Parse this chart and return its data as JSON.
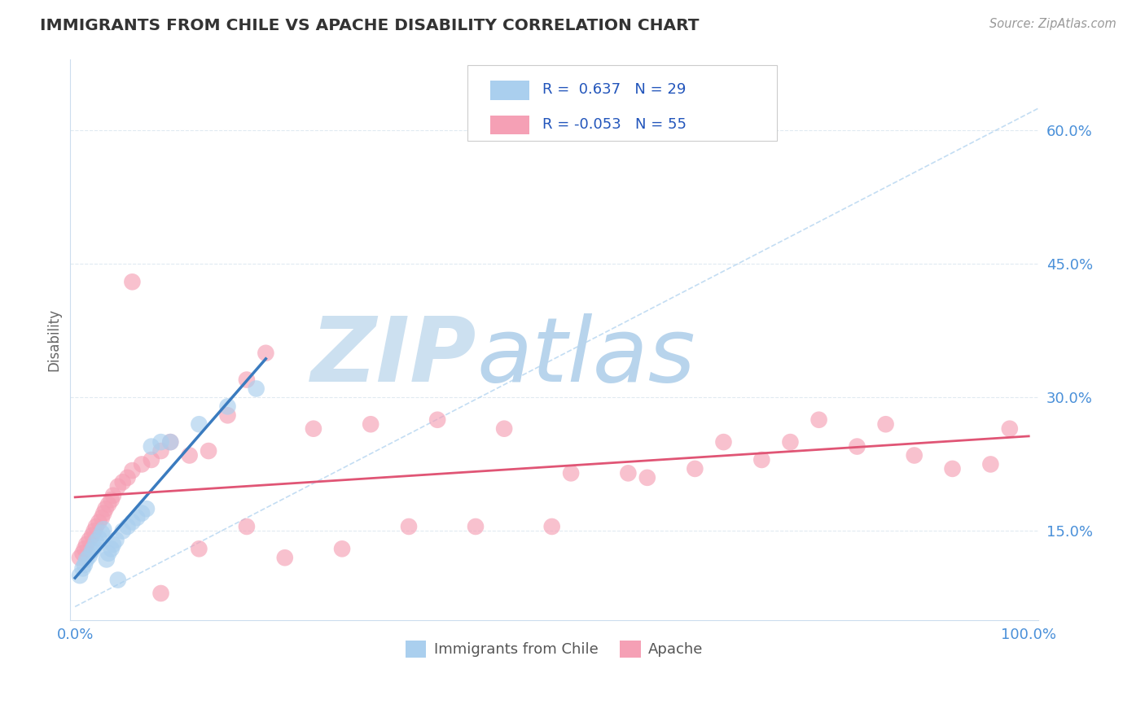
{
  "title": "IMMIGRANTS FROM CHILE VS APACHE DISABILITY CORRELATION CHART",
  "source_text": "Source: ZipAtlas.com",
  "ylabel": "Disability",
  "legend_labels": [
    "Immigrants from Chile",
    "Apache"
  ],
  "r_blue": 0.637,
  "n_blue": 29,
  "r_pink": -0.053,
  "n_pink": 55,
  "blue_color": "#aacfee",
  "blue_line_color": "#3a7bbf",
  "pink_color": "#f5a0b5",
  "pink_line_color": "#e05575",
  "diagonal_color": "#aacfee",
  "watermark_zip": "ZIP",
  "watermark_atlas": "atlas",
  "watermark_color": "#c8dff0",
  "y_ticks": [
    0.15,
    0.3,
    0.45,
    0.6
  ],
  "y_tick_labels": [
    "15.0%",
    "30.0%",
    "45.0%",
    "60.0%"
  ],
  "ylim": [
    0.05,
    0.68
  ],
  "xlim": [
    -0.005,
    1.01
  ],
  "blue_scatter_x": [
    0.005,
    0.008,
    0.01,
    0.012,
    0.015,
    0.018,
    0.02,
    0.022,
    0.025,
    0.028,
    0.03,
    0.033,
    0.035,
    0.038,
    0.04,
    0.043,
    0.045,
    0.05,
    0.055,
    0.06,
    0.065,
    0.07,
    0.075,
    0.08,
    0.09,
    0.1,
    0.13,
    0.16,
    0.19
  ],
  "blue_scatter_y": [
    0.1,
    0.108,
    0.112,
    0.118,
    0.122,
    0.128,
    0.132,
    0.138,
    0.142,
    0.148,
    0.152,
    0.118,
    0.125,
    0.13,
    0.135,
    0.14,
    0.095,
    0.15,
    0.155,
    0.16,
    0.165,
    0.17,
    0.175,
    0.245,
    0.25,
    0.25,
    0.27,
    0.29,
    0.31
  ],
  "pink_scatter_x": [
    0.005,
    0.008,
    0.01,
    0.012,
    0.015,
    0.018,
    0.02,
    0.022,
    0.025,
    0.028,
    0.03,
    0.032,
    0.035,
    0.038,
    0.04,
    0.045,
    0.05,
    0.055,
    0.06,
    0.07,
    0.08,
    0.09,
    0.1,
    0.12,
    0.14,
    0.16,
    0.18,
    0.2,
    0.25,
    0.31,
    0.38,
    0.45,
    0.52,
    0.6,
    0.68,
    0.75,
    0.82,
    0.88,
    0.92,
    0.96,
    0.98,
    0.85,
    0.78,
    0.72,
    0.65,
    0.58,
    0.5,
    0.42,
    0.35,
    0.28,
    0.22,
    0.18,
    0.13,
    0.09,
    0.06
  ],
  "pink_scatter_y": [
    0.12,
    0.125,
    0.13,
    0.135,
    0.14,
    0.145,
    0.15,
    0.155,
    0.16,
    0.165,
    0.17,
    0.175,
    0.18,
    0.185,
    0.19,
    0.2,
    0.205,
    0.21,
    0.218,
    0.225,
    0.23,
    0.24,
    0.25,
    0.235,
    0.24,
    0.28,
    0.32,
    0.35,
    0.265,
    0.27,
    0.275,
    0.265,
    0.215,
    0.21,
    0.25,
    0.25,
    0.245,
    0.235,
    0.22,
    0.225,
    0.265,
    0.27,
    0.275,
    0.23,
    0.22,
    0.215,
    0.155,
    0.155,
    0.155,
    0.13,
    0.12,
    0.155,
    0.13,
    0.08,
    0.43
  ],
  "background_color": "#ffffff",
  "grid_color": "#dde8f0",
  "title_color": "#333333",
  "axis_label_color": "#4a90d9"
}
